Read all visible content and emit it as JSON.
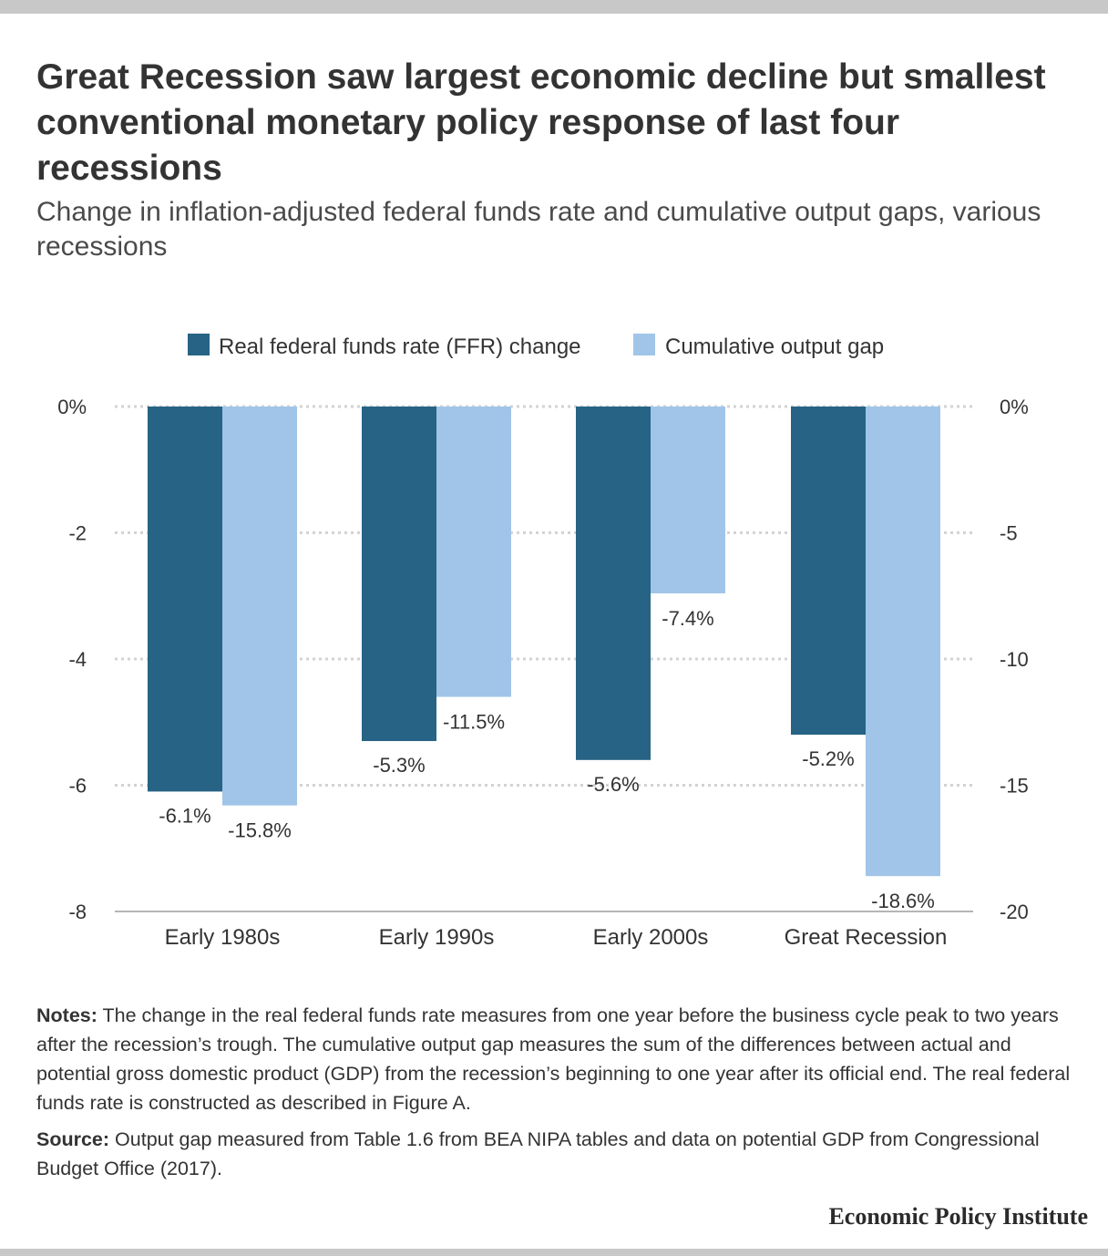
{
  "title": "Great Recession saw largest economic decline but smallest conventional monetary policy response of last four recessions",
  "subtitle": "Change in inflation-adjusted federal funds rate and cumulative output gaps, various recessions",
  "colors": {
    "ffr": "#266384",
    "gap": "#a0c5e8",
    "grid": "#d3d3d3",
    "text": "#333333"
  },
  "chart_data": {
    "type": "bar",
    "categories": [
      "Early 1980s",
      "Early 1990s",
      "Early 2000s",
      "Great Recession"
    ],
    "series": [
      {
        "name": "Real federal funds rate (FFR) change",
        "axis": "left",
        "values": [
          -6.1,
          -5.3,
          -5.6,
          -5.2
        ],
        "labels": [
          "-6.1%",
          "-5.3%",
          "-5.6%",
          "-5.2%"
        ]
      },
      {
        "name": "Cumulative output gap",
        "axis": "right",
        "values": [
          -15.8,
          -11.5,
          -7.4,
          -18.6
        ],
        "labels": [
          "-15.8%",
          "-11.5%",
          "-7.4%",
          "-18.6%"
        ]
      }
    ],
    "y_left": {
      "ylim": [
        -8,
        0
      ],
      "ticks": [
        "0%",
        "-2",
        "-4",
        "-6",
        "-8"
      ]
    },
    "y_right": {
      "ylim": [
        -20,
        0
      ],
      "ticks": [
        "0%",
        "-5",
        "-10",
        "-15",
        "-20"
      ]
    },
    "grid": true,
    "legend_position": "top"
  },
  "notes": {
    "label": "Notes:",
    "text": " The change in the real federal funds rate measures from one year before the business cycle peak to two years after the recession’s trough. The cumulative output gap measures the sum of the differences between actual and potential gross domestic product (GDP) from the recession’s beginning to one year after its official end.  The real federal funds rate is constructed as described in Figure A."
  },
  "source": {
    "label": "Source:",
    "text": " Output gap measured from Table 1.6 from BEA NIPA tables and data on potential GDP from Congressional Budget Office (2017)."
  },
  "brand": "Economic Policy Institute"
}
